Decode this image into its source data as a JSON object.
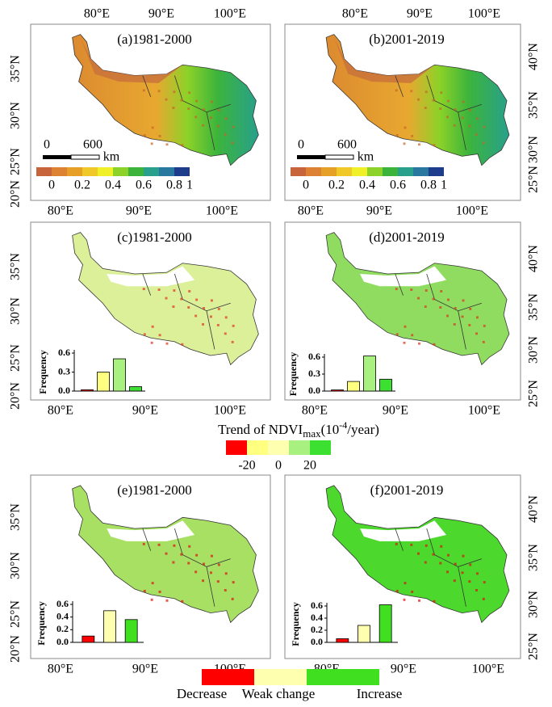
{
  "panels": [
    {
      "title": "(a)1981-2000",
      "top_ticks": [
        "80°E",
        "90°E",
        "100°E"
      ],
      "bottom_ticks": [
        "80°E",
        "90°E",
        "100°E"
      ],
      "side": "left",
      "side_ticks": [
        "35°N",
        "30°N",
        "25°N",
        "20°N"
      ]
    },
    {
      "title": "(b)2001-2019",
      "top_ticks": [
        "80°E",
        "90°E",
        "100°E"
      ],
      "bottom_ticks": [
        "80°E",
        "90°E",
        "100°E"
      ],
      "side": "right",
      "side_ticks": [
        "40°N",
        "35°N",
        "30°N",
        "25°N"
      ]
    },
    {
      "title": "(c)1981-2000",
      "bottom_ticks": [
        "80°E",
        "90°E",
        "100°E"
      ],
      "side": "left",
      "side_ticks": [
        "35°N",
        "30°N",
        "25°N",
        "20°N"
      ],
      "inset": {
        "type": "bar",
        "ylabel": "Frequency",
        "values": [
          0.02,
          0.3,
          0.51,
          0.07
        ],
        "colors": [
          "#ff0000",
          "#ffff80",
          "#a8f080",
          "#3ce030"
        ],
        "ylim": [
          0,
          0.6
        ],
        "yticks": [
          {
            "value": 0,
            "label": "0.0"
          },
          0.3,
          0.6
        ]
      }
    },
    {
      "title": "(d)2001-2019",
      "bottom_ticks": [
        "80°E",
        "90°E",
        "100°E"
      ],
      "side": "right",
      "side_ticks": [
        "40°N",
        "35°N",
        "30°N",
        "25°N"
      ],
      "inset": {
        "type": "bar",
        "ylabel": "Frequency",
        "values": [
          0.02,
          0.17,
          0.62,
          0.21
        ],
        "colors": [
          "#ff0000",
          "#ffff80",
          "#a8f080",
          "#3ce030"
        ],
        "ylim": [
          0,
          0.6
        ],
        "yticks": [
          {
            "value": 0,
            "label": "0.0"
          },
          0.3,
          0.6
        ]
      }
    },
    {
      "title": "(e)1981-2000",
      "bottom_ticks": [
        "80°E",
        "90°E",
        "100°E"
      ],
      "side": "left",
      "side_ticks": [
        "35°N",
        "30°N",
        "25°N",
        "20°N"
      ],
      "inset": {
        "type": "bar",
        "ylabel": "Frequency",
        "values": [
          0.1,
          0.5,
          0.36
        ],
        "colors": [
          "#ff0000",
          "#ffffb0",
          "#40e020"
        ],
        "ylim": [
          0,
          0.6
        ],
        "yticks": [
          {
            "value": 0,
            "label": "0.0"
          },
          0.2,
          0.4,
          0.6
        ]
      }
    },
    {
      "title": "(f)2001-2019",
      "bottom_ticks": [
        "80°E",
        "90°E",
        "100°E"
      ],
      "side": "right",
      "side_ticks": [
        "40°N",
        "35°N",
        "30°N",
        "25°N"
      ],
      "inset": {
        "type": "bar",
        "ylabel": "Frequency",
        "values": [
          0.06,
          0.28,
          0.62
        ],
        "colors": [
          "#ff0000",
          "#ffffb0",
          "#40e020"
        ],
        "ylim": [
          0,
          0.6
        ],
        "yticks": [
          {
            "value": 0,
            "label": "0.0"
          },
          0.2,
          0.4,
          0.6
        ]
      }
    }
  ],
  "colorbar": {
    "colors": [
      "#c8643c",
      "#dc8232",
      "#e6a028",
      "#f0c828",
      "#f0f028",
      "#8cd228",
      "#3cb43c",
      "#28a08c",
      "#2878a0",
      "#1e3c8c"
    ],
    "ticks": [
      0,
      0.2,
      0.4,
      0.6,
      0.8,
      1
    ]
  },
  "scale_bar": {
    "labels": [
      "0",
      "600",
      "km"
    ]
  },
  "trend_legend": {
    "title": "Trend of NDVI",
    "subscript": "max",
    "unit_open": "(10",
    "unit_sup": "-4",
    "unit_close": "/year)",
    "colors": [
      "#ff0000",
      "#ffff80",
      "#ffffb0",
      "#a8f080",
      "#3ce030"
    ],
    "ticks": [
      -20,
      0,
      20
    ]
  },
  "class_legend": {
    "labels": [
      "Decrease",
      "Weak change",
      "Increase"
    ],
    "colors": [
      "#ff0000",
      "#ffffb0",
      "#40e020"
    ]
  }
}
